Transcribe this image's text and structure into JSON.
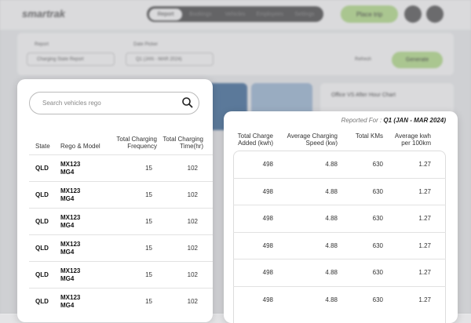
{
  "nav": {
    "logo": "smartrak",
    "tabs": [
      "Report",
      "Bookings",
      "Vehicles",
      "Employees",
      "Settings"
    ],
    "place_trip": "Place trip"
  },
  "filters": {
    "report_label": "Report",
    "report_value": "Charging State Report",
    "date_label": "Date Picker",
    "date_value": "Q1 (JAN - MAR 2024)",
    "refresh": "Refresh",
    "generate": "Generate"
  },
  "chart_card": {
    "title": "Office VS After Hour Chart"
  },
  "left_table": {
    "search_placeholder": "Search vehicles rego",
    "columns": [
      "State",
      "Rego & Model",
      "Total Charging Frequency",
      "Total Charging Time(hr)"
    ],
    "rows": [
      {
        "state": "QLD",
        "rego": "MX123",
        "model": "MG4",
        "frequency": 15,
        "time": 102
      },
      {
        "state": "QLD",
        "rego": "MX123",
        "model": "MG4",
        "frequency": 15,
        "time": 102
      },
      {
        "state": "QLD",
        "rego": "MX123",
        "model": "MG4",
        "frequency": 15,
        "time": 102
      },
      {
        "state": "QLD",
        "rego": "MX123",
        "model": "MG4",
        "frequency": 15,
        "time": 102
      },
      {
        "state": "QLD",
        "rego": "MX123",
        "model": "MG4",
        "frequency": 15,
        "time": 102
      },
      {
        "state": "QLD",
        "rego": "MX123",
        "model": "MG4",
        "frequency": 15,
        "time": 102
      }
    ]
  },
  "right_table": {
    "reported_for_label": "Reported For :",
    "reported_for_value": "Q1 (JAN - MAR 2024)",
    "columns": [
      "Total Charge Added (kwh)",
      "Average Charging Speed (kw)",
      "Total KMs",
      "Average kwh per 100km"
    ],
    "rows": [
      {
        "charge_added": 498,
        "speed": 4.88,
        "kms": 630,
        "per_100km": 1.27
      },
      {
        "charge_added": 498,
        "speed": 4.88,
        "kms": 630,
        "per_100km": 1.27
      },
      {
        "charge_added": 498,
        "speed": 4.88,
        "kms": 630,
        "per_100km": 1.27
      },
      {
        "charge_added": 498,
        "speed": 4.88,
        "kms": 630,
        "per_100km": 1.27
      },
      {
        "charge_added": 498,
        "speed": 4.88,
        "kms": 630,
        "per_100km": 1.27
      },
      {
        "charge_added": 498,
        "speed": 4.88,
        "kms": 630,
        "per_100km": 1.27
      }
    ]
  }
}
